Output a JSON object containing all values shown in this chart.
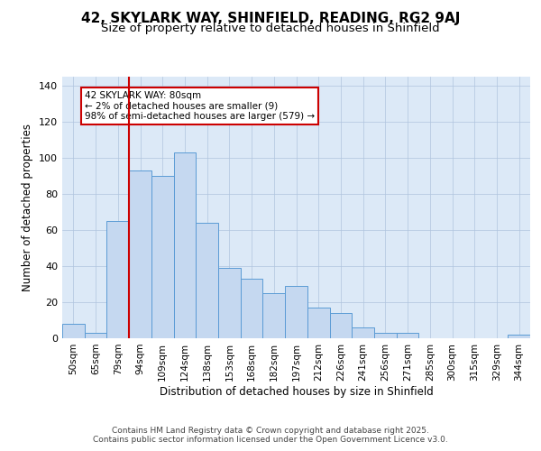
{
  "title": "42, SKYLARK WAY, SHINFIELD, READING, RG2 9AJ",
  "subtitle": "Size of property relative to detached houses in Shinfield",
  "xlabel": "Distribution of detached houses by size in Shinfield",
  "ylabel": "Number of detached properties",
  "categories": [
    "50sqm",
    "65sqm",
    "79sqm",
    "94sqm",
    "109sqm",
    "124sqm",
    "138sqm",
    "153sqm",
    "168sqm",
    "182sqm",
    "197sqm",
    "212sqm",
    "226sqm",
    "241sqm",
    "256sqm",
    "271sqm",
    "285sqm",
    "300sqm",
    "315sqm",
    "329sqm",
    "344sqm"
  ],
  "heights": [
    8,
    3,
    65,
    93,
    90,
    103,
    64,
    39,
    33,
    25,
    29,
    17,
    14,
    6,
    3,
    3,
    0,
    0,
    0,
    0,
    2
  ],
  "bar_color": "#c5d8f0",
  "bar_edge_color": "#5b9bd5",
  "vline_color": "#cc0000",
  "annotation_text": "42 SKYLARK WAY: 80sqm\n← 2% of detached houses are smaller (9)\n98% of semi-detached houses are larger (579) →",
  "annotation_box_color": "#cc0000",
  "ylim": [
    0,
    145
  ],
  "yticks": [
    0,
    20,
    40,
    60,
    80,
    100,
    120,
    140
  ],
  "footer": "Contains HM Land Registry data © Crown copyright and database right 2025.\nContains public sector information licensed under the Open Government Licence v3.0.",
  "fig_bg_color": "#ffffff",
  "plot_bg_color": "#dce9f7",
  "grid_color": "#b0c4de",
  "title_fontsize": 11,
  "subtitle_fontsize": 9.5,
  "label_fontsize": 8.5
}
